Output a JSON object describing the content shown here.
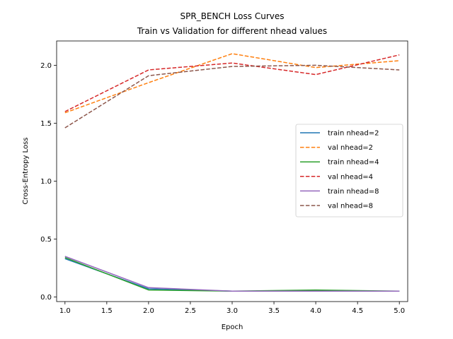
{
  "chart_data": {
    "type": "line",
    "title": "SPR_BENCH Loss Curves",
    "subtitle": "Train vs Validation for different nhead values",
    "xlabel": "Epoch",
    "ylabel": "Cross-Entropy Loss",
    "xlim": [
      0.9,
      5.1
    ],
    "ylim": [
      -0.04,
      2.21
    ],
    "xticks": [
      "1.0",
      "1.5",
      "2.0",
      "2.5",
      "3.0",
      "3.5",
      "4.0",
      "4.5",
      "5.0"
    ],
    "yticks": [
      "0.0",
      "0.5",
      "1.0",
      "1.5",
      "2.0"
    ],
    "grid": false,
    "legend_position": "center-right",
    "x": [
      1,
      2,
      3,
      4,
      5
    ],
    "series": [
      {
        "name": "train nhead=2",
        "values": [
          0.33,
          0.07,
          0.05,
          0.05,
          0.05
        ],
        "color": "#1f77b4",
        "style": "solid"
      },
      {
        "name": "val nhead=2",
        "values": [
          1.59,
          1.85,
          2.1,
          1.98,
          2.04
        ],
        "color": "#ff7f0e",
        "style": "dashed"
      },
      {
        "name": "train nhead=4",
        "values": [
          0.34,
          0.06,
          0.05,
          0.06,
          0.05
        ],
        "color": "#2ca02c",
        "style": "solid"
      },
      {
        "name": "val nhead=4",
        "values": [
          1.6,
          1.96,
          2.02,
          1.92,
          2.09
        ],
        "color": "#d62728",
        "style": "dashed"
      },
      {
        "name": "train nhead=8",
        "values": [
          0.35,
          0.08,
          0.05,
          0.05,
          0.05
        ],
        "color": "#9467bd",
        "style": "solid"
      },
      {
        "name": "val nhead=8",
        "values": [
          1.46,
          1.91,
          1.99,
          2.0,
          1.96
        ],
        "color": "#8c564b",
        "style": "dashed"
      }
    ]
  }
}
